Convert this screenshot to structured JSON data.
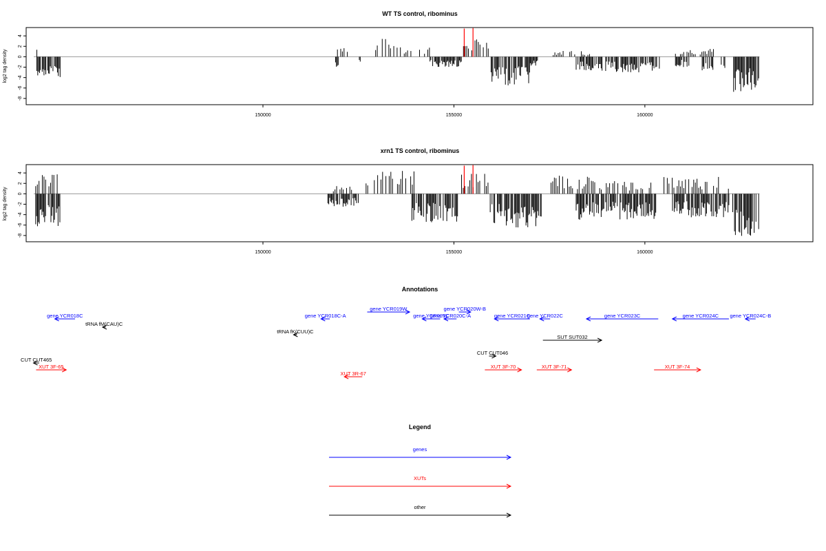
{
  "chart_data": [
    {
      "type": "bar",
      "title": "WT TS control, ribominus",
      "ylabel": "log2 tag density",
      "xlim": [
        143800,
        164400
      ],
      "ylim": [
        -9.2,
        5.6
      ],
      "yticks": [
        4,
        2,
        0,
        -2,
        -4,
        -6,
        -8
      ],
      "xticks": [
        150000,
        155000,
        160000
      ],
      "grid": false,
      "baseline": {
        "x": [
          144000,
          163000
        ]
      },
      "highlight_color": "#ff0000",
      "highlight_bars": [
        {
          "x": 155270,
          "y": 5.4
        },
        {
          "x": 155500,
          "y": 5.5
        }
      ],
      "positive_segments": [
        {
          "x0": 144080,
          "x1": 144120,
          "amp": 2.0
        },
        {
          "x0": 144550,
          "x1": 144620,
          "amp": 1.8
        },
        {
          "x0": 151950,
          "x1": 152250,
          "amp": 2.2
        },
        {
          "x0": 152950,
          "x1": 153600,
          "amp": 3.5
        },
        {
          "x0": 153700,
          "x1": 153900,
          "amp": 2.0
        },
        {
          "x0": 154100,
          "x1": 154400,
          "amp": 1.8
        },
        {
          "x0": 155250,
          "x1": 155900,
          "amp": 3.5
        },
        {
          "x0": 157600,
          "x1": 158600,
          "amp": 1.2
        },
        {
          "x0": 160800,
          "x1": 161800,
          "amp": 1.6
        }
      ],
      "negative_segments": [
        {
          "x0": 144080,
          "x1": 144700,
          "amp": 4.2
        },
        {
          "x0": 151900,
          "x1": 152000,
          "amp": 3.0
        },
        {
          "x0": 152500,
          "x1": 152550,
          "amp": 1.0
        },
        {
          "x0": 154350,
          "x1": 155200,
          "amp": 2.0
        },
        {
          "x0": 155950,
          "x1": 157000,
          "amp": 5.5
        },
        {
          "x0": 157000,
          "x1": 157200,
          "amp": 2.0
        },
        {
          "x0": 158200,
          "x1": 160400,
          "amp": 3.0
        },
        {
          "x0": 160800,
          "x1": 161200,
          "amp": 2.0
        },
        {
          "x0": 161500,
          "x1": 161800,
          "amp": 3.0
        },
        {
          "x0": 162000,
          "x1": 162100,
          "amp": 3.0
        },
        {
          "x0": 162300,
          "x1": 163000,
          "amp": 7.0
        }
      ]
    },
    {
      "type": "bar",
      "title": "xrn1 TS control, ribominus",
      "ylabel": "log2 tag density",
      "xlim": [
        143800,
        164400
      ],
      "ylim": [
        -9.2,
        5.6
      ],
      "yticks": [
        4,
        2,
        0,
        -2,
        -4,
        -6,
        -8
      ],
      "xticks": [
        150000,
        155000,
        160000
      ],
      "grid": false,
      "baseline": {
        "x": [
          144000,
          163000
        ]
      },
      "highlight_color": "#ff0000",
      "highlight_bars": [
        {
          "x": 155270,
          "y": 5.4
        },
        {
          "x": 155500,
          "y": 5.5
        }
      ],
      "positive_segments": [
        {
          "x0": 144050,
          "x1": 144700,
          "amp": 3.8
        },
        {
          "x0": 151800,
          "x1": 152400,
          "amp": 1.8
        },
        {
          "x0": 152700,
          "x1": 154000,
          "amp": 4.5
        },
        {
          "x0": 155200,
          "x1": 155950,
          "amp": 4.2
        },
        {
          "x0": 157500,
          "x1": 158600,
          "amp": 3.5
        },
        {
          "x0": 158600,
          "x1": 160200,
          "amp": 2.5
        },
        {
          "x0": 160500,
          "x1": 162200,
          "amp": 3.3
        }
      ],
      "negative_segments": [
        {
          "x0": 144050,
          "x1": 144700,
          "amp": 6.5
        },
        {
          "x0": 151700,
          "x1": 152500,
          "amp": 2.5
        },
        {
          "x0": 153900,
          "x1": 155100,
          "amp": 5.5
        },
        {
          "x0": 155950,
          "x1": 157300,
          "amp": 6.5
        },
        {
          "x0": 158200,
          "x1": 160300,
          "amp": 5.0
        },
        {
          "x0": 160700,
          "x1": 162200,
          "amp": 4.5
        },
        {
          "x0": 162300,
          "x1": 163000,
          "amp": 8.5
        }
      ]
    }
  ],
  "annotations": {
    "title": "Annotations",
    "xlim": [
      143800,
      164400
    ],
    "colors": {
      "genes": "#0000ff",
      "xuts": "#ff0000",
      "other": "#000000"
    },
    "features": [
      {
        "label": "gene YCR018C",
        "color": "#0000ff",
        "start": 145080,
        "end": 144550,
        "row": 1
      },
      {
        "label": "tRNA fM(CAU)C",
        "color": "#000000",
        "start": 145880,
        "end": 145800,
        "row": 2
      },
      {
        "label": "gene YCR018C-A",
        "color": "#0000ff",
        "start": 151750,
        "end": 151520,
        "row": 1
      },
      {
        "label": "tRNA fK(CUU)C",
        "color": "#000000",
        "start": 150890,
        "end": 150800,
        "row": 3
      },
      {
        "label": "gene YCR019W",
        "color": "#0000ff",
        "start": 152730,
        "end": 153840,
        "row": 0
      },
      {
        "label": "gene YCR020C",
        "color": "#0000ff",
        "start": 154640,
        "end": 154170,
        "row": 1
      },
      {
        "label": "gene YCR020C-A",
        "color": "#0000ff",
        "start": 155070,
        "end": 154740,
        "row": 1
      },
      {
        "label": "gene YCR020W-B",
        "color": "#0000ff",
        "start": 155130,
        "end": 155440,
        "row": 0
      },
      {
        "label": "gene YCR021C",
        "color": "#0000ff",
        "start": 156990,
        "end": 156060,
        "row": 1
      },
      {
        "label": "gene YCR022C",
        "color": "#0000ff",
        "start": 157520,
        "end": 157250,
        "row": 1
      },
      {
        "label": "gene YCR023C",
        "color": "#0000ff",
        "start": 160350,
        "end": 158470,
        "row": 1
      },
      {
        "label": "gene YCR024C",
        "color": "#0000ff",
        "start": 162200,
        "end": 160720,
        "row": 1
      },
      {
        "label": "gene YCR024C-B",
        "color": "#0000ff",
        "start": 162900,
        "end": 162630,
        "row": 1
      },
      {
        "label": "SUT SUT032",
        "color": "#000000",
        "start": 157330,
        "end": 158870,
        "row": 4
      },
      {
        "label": "CUT CUT465",
        "color": "#000000",
        "start": 144140,
        "end": 143990,
        "row": 5
      },
      {
        "label": "CUT CUT046",
        "color": "#000000",
        "start": 155920,
        "end": 156100,
        "row": 6
      },
      {
        "label": "XUT 3F-65",
        "color": "#ff0000",
        "start": 144060,
        "end": 144850,
        "row": 7
      },
      {
        "label": "XUT 3R-67",
        "color": "#ff0000",
        "start": 152600,
        "end": 152130,
        "row": 8
      },
      {
        "label": "XUT 3F-70",
        "color": "#ff0000",
        "start": 155810,
        "end": 156770,
        "row": 7
      },
      {
        "label": "XUT 3F-71",
        "color": "#ff0000",
        "start": 157170,
        "end": 158080,
        "row": 7
      },
      {
        "label": "XUT 3F-74",
        "color": "#ff0000",
        "start": 160240,
        "end": 161460,
        "row": 7
      }
    ]
  },
  "legend": {
    "title": "Legend",
    "items": [
      {
        "label": "genes",
        "color": "#0000ff"
      },
      {
        "label": "XUTs",
        "color": "#ff0000"
      },
      {
        "label": "other",
        "color": "#000000"
      }
    ]
  }
}
